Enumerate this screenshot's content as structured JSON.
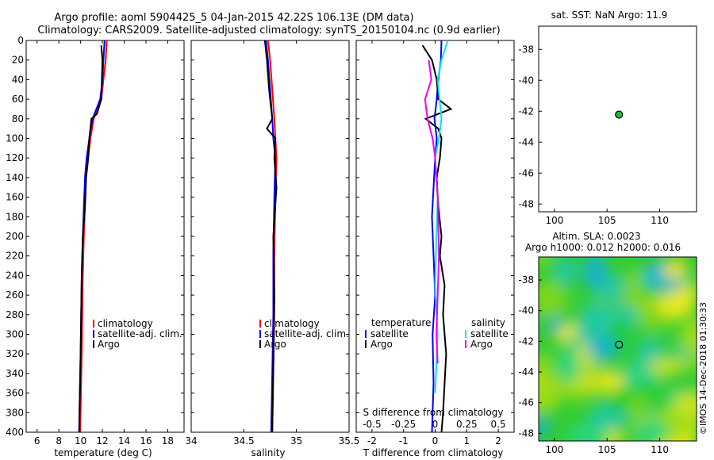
{
  "titles": {
    "line1": "Argo profile: aoml 5904425_5 04-Jan-2015 42.22S 106.13E (DM data)",
    "line2": "Climatology: CARS2009. Satellite-adjusted climatology: synTS_20150104.nc (0.9d earlier)"
  },
  "depth_axis": {
    "ylim": [
      0,
      400
    ],
    "ticks": [
      0,
      20,
      40,
      60,
      80,
      100,
      120,
      140,
      160,
      180,
      200,
      220,
      240,
      260,
      280,
      300,
      320,
      340,
      360,
      380,
      400
    ]
  },
  "colors": {
    "climatology": "#ff0000",
    "satellite": "#0000ff",
    "argo": "#000000",
    "sat_s": "#00e5ee",
    "clim_s": "#ee00ee"
  },
  "chart_data": [
    {
      "type": "line",
      "id": "temperature",
      "xlabel": "temperature (deg C)",
      "xlim": [
        5,
        19.5
      ],
      "xticks": [
        6,
        8,
        10,
        12,
        14,
        16,
        18
      ],
      "ylim": [
        0,
        400
      ],
      "legend": [
        "climatology",
        "satellite-adj. clim.",
        "Argo"
      ],
      "series": [
        {
          "name": "climatology",
          "x": [
            12.4,
            12.3,
            12.1,
            11.9,
            11.2,
            10.9,
            10.7,
            10.5,
            10.4,
            10.3,
            10.2,
            10.15,
            10.1,
            10.05,
            10.0,
            9.95
          ],
          "depth": [
            0,
            20,
            40,
            60,
            80,
            100,
            120,
            140,
            170,
            200,
            240,
            280,
            320,
            350,
            380,
            400
          ]
        },
        {
          "name": "satellite-adj. clim.",
          "x": [
            12.2,
            12.1,
            12.0,
            11.8,
            11.1,
            10.8,
            10.55,
            10.4,
            10.3,
            10.2,
            10.1,
            10.05,
            10.0,
            9.95,
            9.9,
            9.85
          ],
          "depth": [
            0,
            20,
            40,
            60,
            80,
            100,
            120,
            140,
            170,
            200,
            240,
            280,
            320,
            350,
            380,
            400
          ]
        },
        {
          "name": "Argo",
          "x": [
            11.9,
            12.0,
            11.95,
            11.9,
            11.5,
            11.0,
            10.8,
            10.7,
            10.5,
            10.4,
            10.2,
            10.1,
            10.05,
            10.0,
            9.95,
            9.9,
            9.9
          ],
          "depth": [
            5,
            20,
            40,
            60,
            75,
            80,
            100,
            120,
            140,
            170,
            200,
            240,
            280,
            320,
            350,
            380,
            400
          ]
        }
      ]
    },
    {
      "type": "line",
      "id": "salinity",
      "xlabel": "salinity",
      "xlim": [
        34,
        35.5
      ],
      "xticks": [
        34,
        34.5,
        35,
        35.5
      ],
      "ylim": [
        0,
        400
      ],
      "legend": [
        "climatology",
        "satellite-adj. clim.",
        "Argo"
      ],
      "series": [
        {
          "name": "climatology",
          "x": [
            34.73,
            34.75,
            34.77,
            34.79,
            34.8,
            34.81,
            34.8,
            34.79,
            34.79,
            34.78,
            34.77
          ],
          "depth": [
            0,
            20,
            50,
            80,
            100,
            120,
            160,
            220,
            280,
            340,
            400
          ]
        },
        {
          "name": "satellite-adj. clim.",
          "x": [
            34.71,
            34.73,
            34.75,
            34.77,
            34.78,
            34.8,
            34.79,
            34.78,
            34.78,
            34.77,
            34.76
          ],
          "depth": [
            0,
            20,
            50,
            80,
            100,
            120,
            160,
            220,
            280,
            340,
            400
          ]
        },
        {
          "name": "Argo",
          "x": [
            34.7,
            34.72,
            34.74,
            34.76,
            34.77,
            34.72,
            34.8,
            34.79,
            34.81,
            34.78,
            34.79,
            34.78,
            34.77
          ],
          "depth": [
            0,
            20,
            50,
            70,
            80,
            90,
            100,
            120,
            150,
            200,
            260,
            330,
            400
          ]
        }
      ]
    },
    {
      "type": "line",
      "id": "difference",
      "xlabel": "T difference from climatology",
      "xlabel_top": "S difference from climatology",
      "xlim": [
        -2.5,
        2.5
      ],
      "xticks": [
        -2,
        -1,
        0,
        1,
        2
      ],
      "xticks_labels": [
        "-2",
        "-1",
        "0",
        "1",
        "2"
      ],
      "sticks": [
        -0.5,
        -0.25,
        0,
        0.25,
        0.5
      ],
      "sticks_labels": [
        "-0.5",
        "-0.25",
        "0",
        "0.25",
        "0.5"
      ],
      "ylim": [
        0,
        400
      ],
      "legend_temperature": {
        "title": "temperature",
        "items": [
          "satellite",
          "Argo"
        ]
      },
      "legend_salinity": {
        "title": "salinity",
        "items": [
          "satellite",
          "Argo"
        ]
      },
      "series": [
        {
          "name": "temperature satellite",
          "x": [
            0.2,
            0.18,
            0.1,
            0.05,
            -0.02,
            0.05,
            0.0,
            -0.05,
            -0.1,
            -0.05,
            0.0,
            -0.08,
            -0.05,
            -0.1
          ],
          "depth": [
            0,
            20,
            40,
            60,
            80,
            100,
            120,
            150,
            180,
            220,
            260,
            300,
            350,
            400
          ]
        },
        {
          "name": "temperature Argo",
          "x": [
            -0.4,
            -0.1,
            0.05,
            0.1,
            0.5,
            -0.3,
            0.1,
            0.2,
            0.15,
            0.05,
            0.1,
            0.2,
            0.15,
            0.3,
            0.25,
            0.3,
            0.35,
            0.3,
            0.25,
            0.2
          ],
          "depth": [
            5,
            20,
            40,
            60,
            70,
            80,
            90,
            100,
            120,
            140,
            170,
            200,
            220,
            250,
            280,
            300,
            320,
            350,
            380,
            400
          ]
        },
        {
          "name": "salinity satellite",
          "x": [
            0.1,
            0.05,
            0.02,
            0.05,
            0.03,
            0.0,
            0.02,
            0.01,
            0.0,
            0.02,
            0.0
          ],
          "depth": [
            0,
            20,
            40,
            80,
            100,
            120,
            160,
            200,
            250,
            300,
            360
          ]
        },
        {
          "name": "salinity Argo",
          "x": [
            -0.05,
            -0.03,
            -0.08,
            -0.06,
            -0.02,
            0.0,
            0.02,
            0.03,
            0.01,
            0.02
          ],
          "depth": [
            20,
            40,
            60,
            80,
            100,
            120,
            160,
            220,
            300,
            330
          ]
        }
      ]
    },
    {
      "type": "scatter",
      "id": "sst-map",
      "title": "sat. SST: NaN Argo: 11.9",
      "xlim": [
        98.5,
        113.5
      ],
      "ylim": [
        -48.5,
        -36.5
      ],
      "xticks": [
        100,
        105,
        110
      ],
      "yticks": [
        -38,
        -40,
        -42,
        -44,
        -46,
        -48
      ],
      "points": [
        {
          "x": 106.13,
          "y": -42.22
        }
      ]
    },
    {
      "type": "heatmap",
      "id": "sla-map",
      "title_line1": "Altim. SLA: 0.0023",
      "title_line2": "Argo h1000: 0.012 h2000: 0.016",
      "xlim": [
        98.5,
        113.5
      ],
      "ylim": [
        -48.5,
        -36.5
      ],
      "xticks": [
        100,
        105,
        110
      ],
      "yticks": [
        -38,
        -40,
        -42,
        -44,
        -46,
        -48
      ],
      "points": [
        {
          "x": 106.13,
          "y": -42.22
        }
      ]
    }
  ],
  "watermark": "©IMOS 14-Dec-2018 01:30:33"
}
